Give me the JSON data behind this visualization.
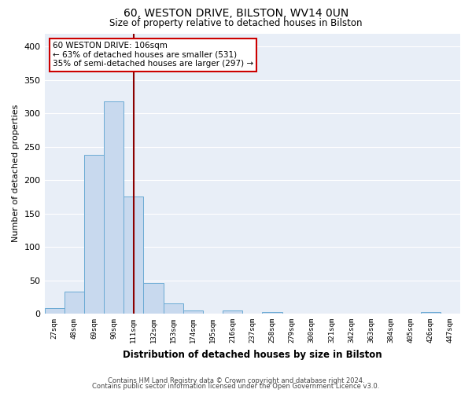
{
  "title1": "60, WESTON DRIVE, BILSTON, WV14 0UN",
  "title2": "Size of property relative to detached houses in Bilston",
  "xlabel": "Distribution of detached houses by size in Bilston",
  "ylabel": "Number of detached properties",
  "categories": [
    "27sqm",
    "48sqm",
    "69sqm",
    "90sqm",
    "111sqm",
    "132sqm",
    "153sqm",
    "174sqm",
    "195sqm",
    "216sqm",
    "237sqm",
    "258sqm",
    "279sqm",
    "300sqm",
    "321sqm",
    "342sqm",
    "363sqm",
    "384sqm",
    "405sqm",
    "426sqm",
    "447sqm"
  ],
  "values": [
    8,
    33,
    238,
    318,
    175,
    46,
    15,
    5,
    0,
    5,
    0,
    3,
    0,
    0,
    0,
    0,
    0,
    0,
    0,
    3,
    0
  ],
  "bar_color": "#c8d9ee",
  "bar_edge_color": "#6aaad4",
  "vline_color": "#8b0000",
  "annotation_text": "60 WESTON DRIVE: 106sqm\n← 63% of detached houses are smaller (531)\n35% of semi-detached houses are larger (297) →",
  "annotation_box_color": "#ffffff",
  "annotation_box_edge": "#cc0000",
  "ylim": [
    0,
    420
  ],
  "yticks": [
    0,
    50,
    100,
    150,
    200,
    250,
    300,
    350,
    400
  ],
  "footer1": "Contains HM Land Registry data © Crown copyright and database right 2024.",
  "footer2": "Contains public sector information licensed under the Open Government Licence v3.0.",
  "fig_background": "#ffffff",
  "plot_background": "#e8eef7",
  "grid_color": "#ffffff"
}
